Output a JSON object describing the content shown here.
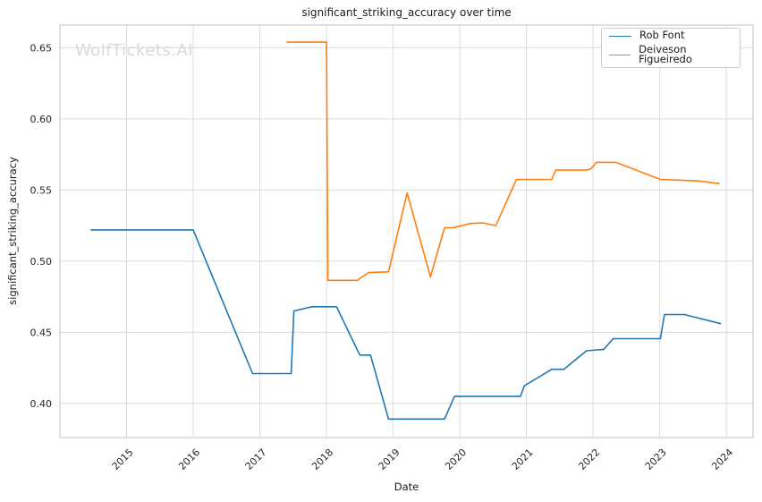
{
  "figure": {
    "title": "significant_striking_accuracy over time",
    "xlabel": "Date",
    "ylabel": "significant_striking_accuracy",
    "watermark": "WolfTickets.AI"
  },
  "legend": {
    "position": "upper right",
    "items": [
      {
        "label": "Rob Font",
        "color": "#1f77b4"
      },
      {
        "label": "Deiveson Figueiredo",
        "color": "#ff7f0e"
      }
    ]
  },
  "colors": {
    "series_blue": "#1f77b4",
    "series_orange": "#ff7f0e",
    "grid": "#dcdcdc",
    "spine": "#c0c0c0",
    "tick_text": "#262626",
    "watermark": "#d8d8d8",
    "background": "#ffffff"
  },
  "chart_data": {
    "type": "line",
    "title": "significant_striking_accuracy over time",
    "xlabel": "Date",
    "ylabel": "significant_striking_accuracy",
    "xlim": [
      2014.0,
      2024.4
    ],
    "ylim": [
      0.376,
      0.666
    ],
    "x_ticks": [
      2015,
      2016,
      2017,
      2018,
      2019,
      2020,
      2021,
      2022,
      2023,
      2024
    ],
    "x_tick_labels": [
      "2015",
      "2016",
      "2017",
      "2018",
      "2019",
      "2020",
      "2021",
      "2022",
      "2023",
      "2024"
    ],
    "y_ticks": [
      0.4,
      0.45,
      0.5,
      0.55,
      0.6,
      0.65
    ],
    "y_tick_labels": [
      "0.40",
      "0.45",
      "0.50",
      "0.55",
      "0.60",
      "0.65"
    ],
    "grid": true,
    "legend_position": "upper right",
    "series": [
      {
        "name": "Rob Font",
        "color": "#1f77b4",
        "points": [
          [
            2014.46,
            0.522
          ],
          [
            2016.0,
            0.522
          ],
          [
            2016.89,
            0.421
          ],
          [
            2017.47,
            0.421
          ],
          [
            2017.51,
            0.465
          ],
          [
            2017.78,
            0.468
          ],
          [
            2018.15,
            0.468
          ],
          [
            2018.5,
            0.434
          ],
          [
            2018.66,
            0.434
          ],
          [
            2018.93,
            0.389
          ],
          [
            2019.77,
            0.389
          ],
          [
            2019.92,
            0.405
          ],
          [
            2020.91,
            0.405
          ],
          [
            2020.97,
            0.4125
          ],
          [
            2021.38,
            0.424
          ],
          [
            2021.56,
            0.424
          ],
          [
            2021.9,
            0.437
          ],
          [
            2022.16,
            0.438
          ],
          [
            2022.3,
            0.4455
          ],
          [
            2023.01,
            0.4455
          ],
          [
            2023.07,
            0.4625
          ],
          [
            2023.37,
            0.4625
          ],
          [
            2023.92,
            0.456
          ]
        ]
      },
      {
        "name": "Deiveson Figueiredo",
        "color": "#ff7f0e",
        "points": [
          [
            2017.4,
            0.654
          ],
          [
            2018.0,
            0.654
          ],
          [
            2018.02,
            0.4865
          ],
          [
            2018.46,
            0.4865
          ],
          [
            2018.63,
            0.492
          ],
          [
            2018.93,
            0.4925
          ],
          [
            2019.21,
            0.548
          ],
          [
            2019.56,
            0.489
          ],
          [
            2019.77,
            0.5235
          ],
          [
            2019.9,
            0.5235
          ],
          [
            2020.16,
            0.5265
          ],
          [
            2020.34,
            0.527
          ],
          [
            2020.54,
            0.525
          ],
          [
            2020.85,
            0.5575
          ],
          [
            2021.38,
            0.5575
          ],
          [
            2021.44,
            0.564
          ],
          [
            2021.9,
            0.564
          ],
          [
            2021.97,
            0.565
          ],
          [
            2022.05,
            0.5695
          ],
          [
            2022.34,
            0.5695
          ],
          [
            2023.01,
            0.5575
          ],
          [
            2023.56,
            0.5565
          ],
          [
            2023.9,
            0.5545
          ]
        ]
      }
    ]
  }
}
